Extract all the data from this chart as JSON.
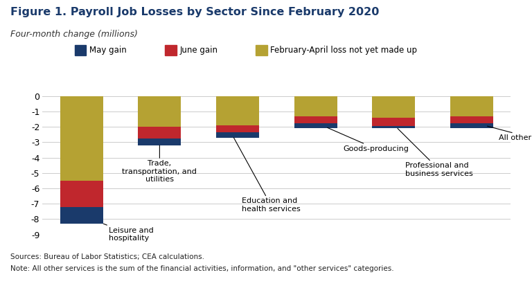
{
  "title": "Figure 1. Payroll Job Losses by Sector Since February 2020",
  "subtitle": "Four-month change (millions)",
  "sectors": [
    "Leisure and\nhospitality",
    "Trade,\ntransportation, and\nutilities",
    "Education and\nhealth services",
    "Goods-producing",
    "Professional and\nbusiness services",
    "All other services"
  ],
  "may_gain": [
    -1.1,
    -0.45,
    -0.35,
    -0.35,
    -0.15,
    -0.35
  ],
  "june_gain": [
    -1.7,
    -0.75,
    -0.45,
    -0.45,
    -0.55,
    -0.45
  ],
  "feb_april_loss": [
    -5.5,
    -2.0,
    -1.9,
    -1.3,
    -1.4,
    -1.3
  ],
  "color_may": "#1a3a6b",
  "color_june": "#c0272d",
  "color_feb": "#b5a233",
  "ylim": [
    -9,
    0.3
  ],
  "yticks": [
    0,
    -1,
    -2,
    -3,
    -4,
    -5,
    -6,
    -7,
    -8,
    -9
  ],
  "note_line1": "Sources: Bureau of Labor Statistics; CEA calculations.",
  "note_line2": "Note: All other services is the sum of the financial activities, information, and \"other services\" categories.",
  "background_color": "#ffffff",
  "title_color": "#1a3a6b",
  "grid_color": "#cccccc"
}
